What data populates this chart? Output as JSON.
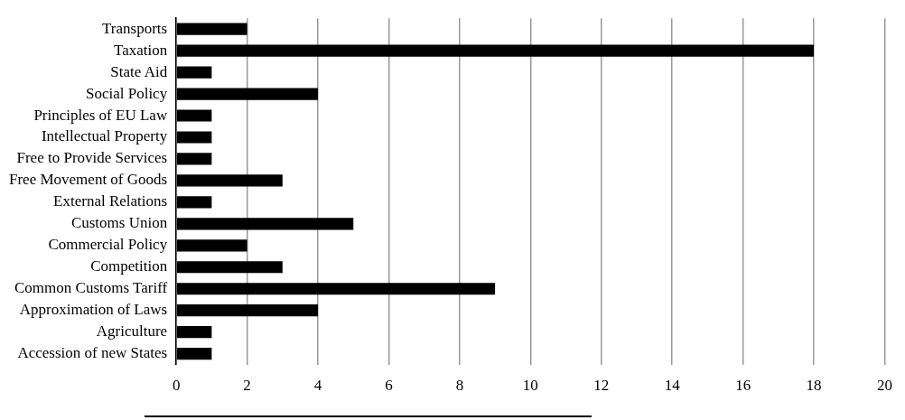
{
  "chart_data": {
    "type": "bar",
    "orientation": "horizontal",
    "categories": [
      "Transports",
      "Taxation",
      "State Aid",
      "Social Policy",
      "Principles of EU Law",
      "Intellectual Property",
      "Free to Provide Services",
      "Free Movement of Goods",
      "External Relations",
      "Customs Union",
      "Commercial Policy",
      "Competition",
      "Common Customs Tariff",
      "Approximation of Laws",
      "Agriculture",
      "Accession of new States"
    ],
    "values": [
      2,
      18,
      1,
      4,
      1,
      1,
      1,
      3,
      1,
      5,
      2,
      3,
      9,
      4,
      1,
      1
    ],
    "color": "#000000",
    "xlim": [
      0,
      20
    ],
    "xticks": [
      0,
      2,
      4,
      6,
      8,
      10,
      12,
      14,
      16,
      18,
      20
    ],
    "grid": "x",
    "legend": false
  }
}
